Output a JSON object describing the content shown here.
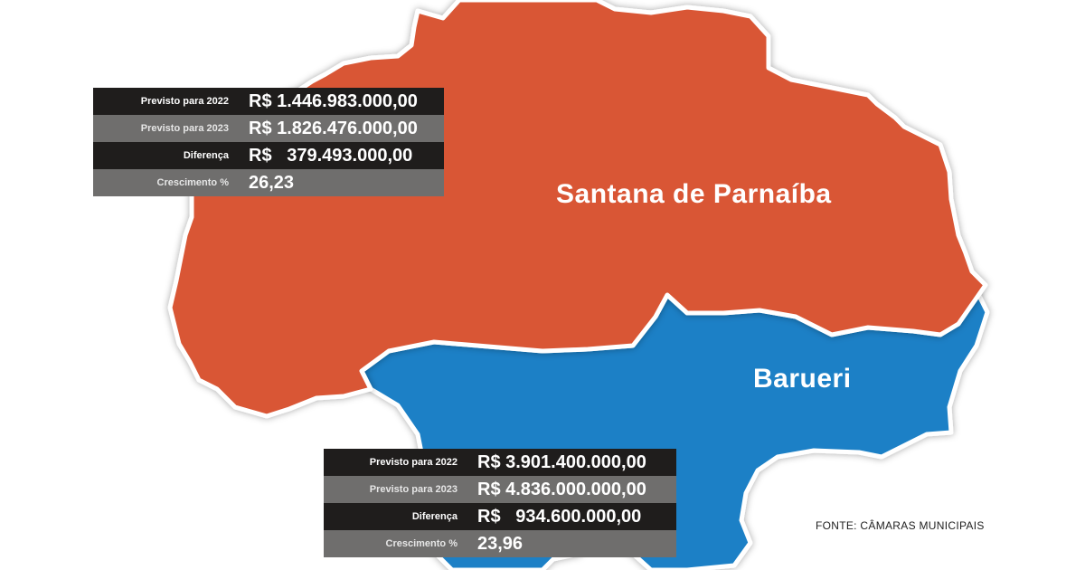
{
  "regions": {
    "santana": {
      "name": "Santana de Parnaíba",
      "color": "#d95634",
      "table": [
        {
          "label": "Previsto para 2022",
          "value": "R$ 1.446.983.000,00"
        },
        {
          "label": "Previsto para 2023",
          "value": "R$ 1.826.476.000,00"
        },
        {
          "label": "Diferença",
          "value": "R$   379.493.000,00"
        },
        {
          "label": "Crescimento %",
          "value": "26,23"
        }
      ]
    },
    "barueri": {
      "name": "Barueri",
      "color": "#1a80c6",
      "table": [
        {
          "label": "Previsto para 2022",
          "value": "R$ 3.901.400.000,00"
        },
        {
          "label": "Previsto para 2023",
          "value": "R$ 4.836.000.000,00"
        },
        {
          "label": "Diferença",
          "value": "R$   934.600.000,00"
        },
        {
          "label": "Crescimento %",
          "value": "23,96"
        }
      ]
    }
  },
  "source": "FONTE: CÂMARAS MUNICIPAIS"
}
